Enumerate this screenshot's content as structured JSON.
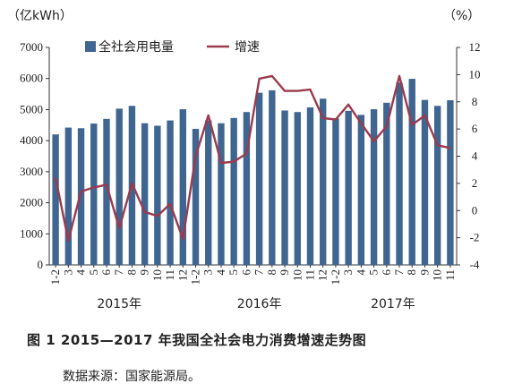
{
  "chart_data": {
    "type": "bar",
    "left_unit": "（亿kWh）",
    "right_unit": "（%）",
    "legend_series": [
      "全社会用电量",
      "增速"
    ],
    "x_ticks": [
      "1-2",
      "3",
      "4",
      "5",
      "6",
      "7",
      "8",
      "9",
      "10",
      "11",
      "12",
      "1-2",
      "3",
      "4",
      "5",
      "6",
      "7",
      "8",
      "9",
      "10",
      "11",
      "12",
      "1-2",
      "3",
      "4",
      "5",
      "6",
      "7",
      "8",
      "9",
      "10",
      "11"
    ],
    "year_labels": [
      "2015年",
      "2016年",
      "2017年"
    ],
    "y_left": {
      "min": 0,
      "max": 7000,
      "ticks": [
        "0",
        "1000",
        "2000",
        "3000",
        "4000",
        "5000",
        "6000",
        "7000"
      ]
    },
    "y_right": {
      "min": -4,
      "max": 12,
      "ticks": [
        "-4",
        "-2",
        "0",
        "2",
        "4",
        "6",
        "8",
        "10",
        "12"
      ]
    },
    "series": [
      {
        "name": "全社会用电量",
        "type": "bar",
        "color": "#3f6690",
        "values": [
          4200,
          4420,
          4400,
          4550,
          4700,
          5030,
          5120,
          4560,
          4480,
          4650,
          5010,
          4380,
          4650,
          4560,
          4730,
          4920,
          5540,
          5620,
          4970,
          4920,
          5070,
          5350,
          4720,
          4960,
          4830,
          5010,
          5220,
          5870,
          5990,
          5310,
          5120,
          5300
        ]
      },
      {
        "name": "增速",
        "type": "line",
        "color": "#9b3a4e",
        "values": [
          2.4,
          -2.2,
          1.4,
          1.7,
          1.9,
          -1.3,
          2.0,
          -0.1,
          -0.4,
          0.5,
          -2.1,
          4.0,
          7.0,
          3.5,
          3.6,
          4.2,
          9.7,
          9.9,
          8.8,
          8.8,
          8.9,
          6.8,
          6.7,
          7.8,
          6.4,
          5.1,
          6.2,
          9.9,
          6.3,
          7.0,
          4.8,
          4.6
        ]
      }
    ]
  },
  "caption": "图 1    2015—2017 年我国全社会电力消费增速走势图",
  "source": "数据来源：国家能源局。"
}
